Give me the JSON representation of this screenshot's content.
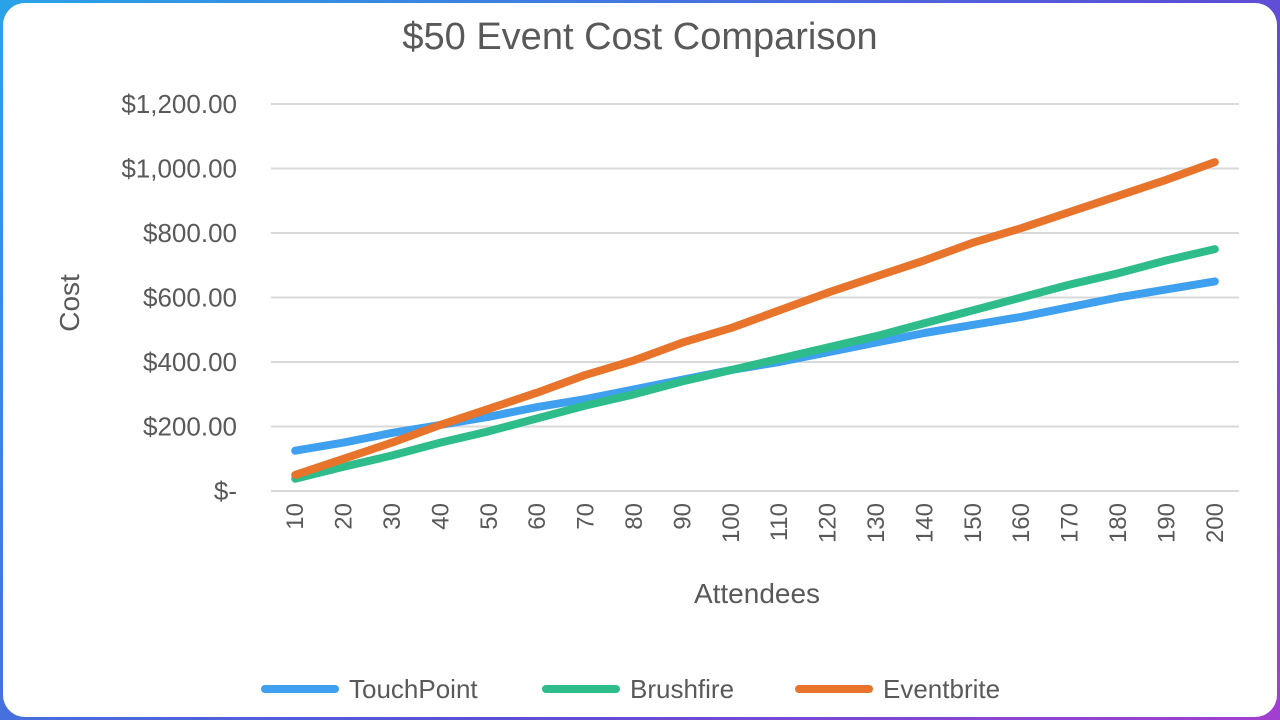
{
  "chart_data": {
    "type": "line",
    "title": "$50 Event Cost Comparison",
    "xlabel": "Attendees",
    "ylabel": "Cost",
    "categories": [
      "10",
      "20",
      "30",
      "40",
      "50",
      "60",
      "70",
      "80",
      "90",
      "100",
      "110",
      "120",
      "130",
      "140",
      "150",
      "160",
      "170",
      "180",
      "190",
      "200"
    ],
    "ylim": [
      0,
      1200
    ],
    "ytick_values": [
      0,
      200,
      400,
      600,
      800,
      1000,
      1200
    ],
    "ytick_labels": [
      "$-",
      "$200.00",
      "$400.00",
      "$600.00",
      "$800.00",
      "$1,000.00",
      "$1,200.00"
    ],
    "grid": true,
    "legend_position": "bottom",
    "series": [
      {
        "name": "TouchPoint",
        "color": "#3fa0ef",
        "values": [
          125,
          150,
          180,
          205,
          230,
          260,
          285,
          315,
          345,
          375,
          400,
          430,
          460,
          490,
          515,
          540,
          570,
          600,
          625,
          650
        ]
      },
      {
        "name": "Brushfire",
        "color": "#2ebd8a",
        "values": [
          38,
          75,
          110,
          150,
          185,
          225,
          265,
          300,
          340,
          375,
          410,
          445,
          480,
          520,
          560,
          600,
          640,
          675,
          715,
          750
        ]
      },
      {
        "name": "Eventbrite",
        "color": "#e8732a",
        "values": [
          50,
          100,
          150,
          205,
          255,
          305,
          360,
          405,
          460,
          505,
          560,
          615,
          665,
          715,
          770,
          815,
          865,
          915,
          965,
          1020
        ]
      }
    ]
  }
}
